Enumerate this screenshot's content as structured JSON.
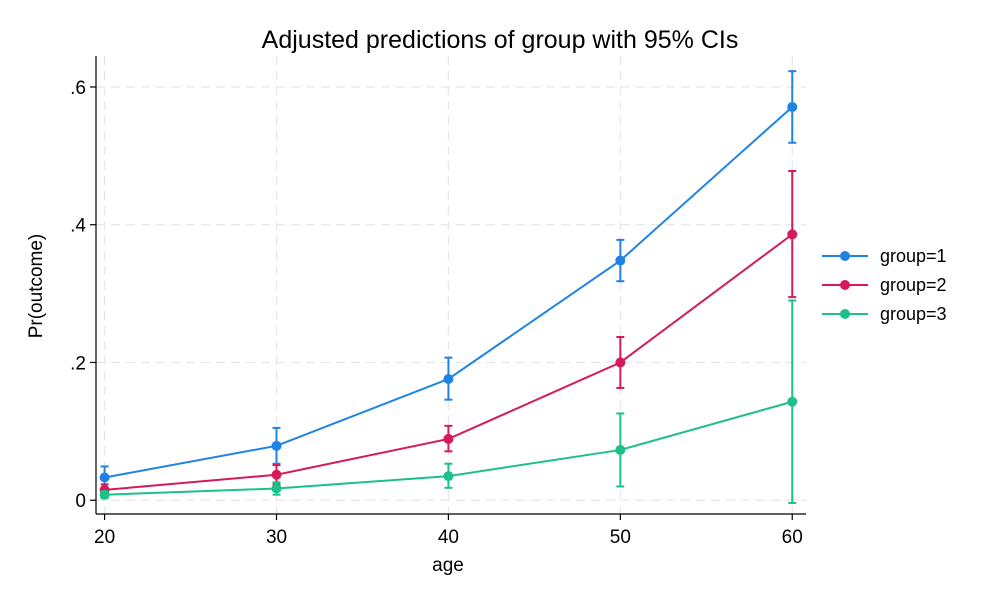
{
  "chart_data": {
    "type": "line",
    "title": "Adjusted predictions of group with 95% CIs",
    "xlabel": "age",
    "ylabel": "Pr(outcome)",
    "x": [
      20,
      30,
      40,
      50,
      60
    ],
    "x_ticks": [
      20,
      30,
      40,
      50,
      60
    ],
    "x_tick_labels": [
      "20",
      "30",
      "40",
      "50",
      "60"
    ],
    "y_ticks": [
      0,
      0.2,
      0.4,
      0.6
    ],
    "y_tick_labels": [
      "0",
      ".2",
      ".4",
      ".6"
    ],
    "xlim": [
      19.5,
      60.8
    ],
    "ylim": [
      -0.02,
      0.645
    ],
    "grid": true,
    "legend_position": "right",
    "series": [
      {
        "name": "group=1",
        "color": "#1f83e6",
        "values": [
          0.033,
          0.079,
          0.176,
          0.348,
          0.571
        ],
        "ci_lower": [
          0.017,
          0.053,
          0.146,
          0.318,
          0.519
        ],
        "ci_upper": [
          0.049,
          0.105,
          0.207,
          0.378,
          0.623
        ]
      },
      {
        "name": "group=2",
        "color": "#d41b58",
        "values": [
          0.015,
          0.037,
          0.089,
          0.2,
          0.386
        ],
        "ci_lower": [
          0.007,
          0.023,
          0.071,
          0.163,
          0.295
        ],
        "ci_upper": [
          0.023,
          0.051,
          0.108,
          0.237,
          0.478
        ]
      },
      {
        "name": "group=3",
        "color": "#1ec08a",
        "values": [
          0.008,
          0.017,
          0.035,
          0.073,
          0.143
        ],
        "ci_lower": [
          0.003,
          0.008,
          0.018,
          0.02,
          -0.004
        ],
        "ci_upper": [
          0.013,
          0.026,
          0.053,
          0.126,
          0.29
        ]
      }
    ]
  }
}
